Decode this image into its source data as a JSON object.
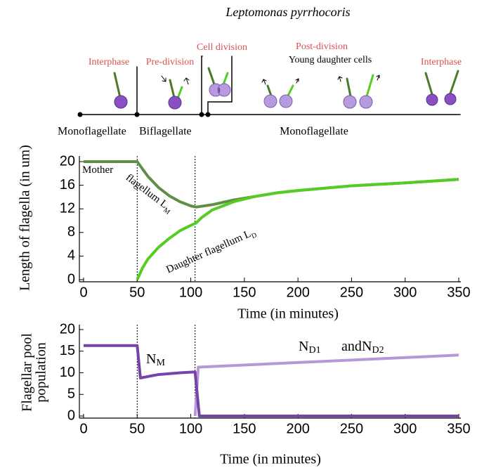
{
  "diagram": {
    "title": "Leptomonas pyrrhocoris",
    "stages": [
      "Interphase",
      "Pre-division",
      "Cell division",
      "Post-division",
      "Interphase"
    ],
    "note": "Young daughter cells",
    "phases": [
      "Monoflagellate",
      "Biflagellate",
      "Monoflagellate"
    ]
  },
  "chart_data": [
    {
      "type": "line",
      "xlabel": "Time (in minutes)",
      "ylabel": "Length of flagella (in um)",
      "xlim": [
        0,
        350
      ],
      "xticks": [
        0,
        50,
        100,
        150,
        200,
        250,
        300,
        350
      ],
      "ylim": [
        0,
        20
      ],
      "yticks": [
        0,
        4,
        8,
        12,
        16,
        20
      ],
      "vlines": [
        50,
        104
      ],
      "series": [
        {
          "color": "#5f8f47",
          "x": [
            0,
            50,
            60,
            70,
            80,
            90,
            100,
            105,
            120,
            140,
            160,
            180,
            200,
            250,
            300,
            350
          ],
          "values": [
            20,
            20,
            17.5,
            15.6,
            14.2,
            13.2,
            12.5,
            12.3,
            12.7,
            13.5,
            14.1,
            14.7,
            15.1,
            15.9,
            16.4,
            17.0
          ]
        },
        {
          "color": "#55cc22",
          "x": [
            50,
            55,
            60,
            70,
            80,
            90,
            100,
            105,
            110,
            120,
            140,
            160,
            180,
            200,
            250,
            300,
            350
          ],
          "values": [
            0,
            2,
            3.5,
            5.5,
            7,
            8.3,
            9.2,
            9.6,
            10.5,
            11.8,
            13.2,
            14.1,
            14.7,
            15.1,
            15.9,
            16.4,
            17.0
          ]
        }
      ],
      "annotations": [
        {
          "text": "Mother"
        },
        {
          "text": "flagellum L",
          "sub": "M"
        },
        {
          "text": "Daughter flagellum L",
          "sub": "D"
        }
      ]
    },
    {
      "type": "line",
      "xlabel": "Time (in minutes)",
      "ylabel": [
        "Flagellar pool",
        "population"
      ],
      "xlim": [
        0,
        350
      ],
      "xticks": [
        0,
        50,
        100,
        150,
        200,
        250,
        300,
        350
      ],
      "ylim": [
        0,
        20
      ],
      "yticks": [
        0,
        5,
        10,
        15,
        20
      ],
      "vlines": [
        50,
        104
      ],
      "series": [
        {
          "color": "#b598d8",
          "x": [
            104,
            107,
            350
          ],
          "values": [
            0,
            11.3,
            14.1
          ]
        },
        {
          "color": "#7444a8",
          "x": [
            0,
            50,
            53,
            70,
            90,
            104,
            108,
            350
          ],
          "values": [
            16.3,
            16.3,
            8.8,
            9.6,
            10.0,
            10.2,
            0,
            0
          ]
        }
      ],
      "annotations": [
        {
          "text": "N",
          "sub": "M"
        },
        {
          "text": "N",
          "sub": "D1"
        },
        {
          "text": "and"
        },
        {
          "text": "N",
          "sub": "D2"
        }
      ]
    }
  ]
}
